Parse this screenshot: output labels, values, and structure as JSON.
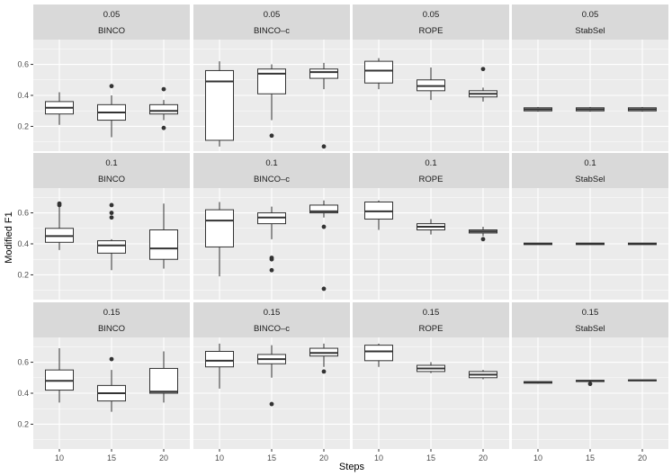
{
  "chart_data": {
    "type": "boxplot",
    "xlabel": "Steps",
    "ylabel": "Modified F1",
    "x_categories": [
      "10",
      "15",
      "20"
    ],
    "ylim": [
      0.04,
      0.76
    ],
    "yticks": [
      0.2,
      0.4,
      0.6
    ],
    "ytick_labels": [
      "0.2",
      "0.4",
      "0.6"
    ],
    "row_labels": [
      "0.05",
      "0.1",
      "0.15"
    ],
    "col_labels": [
      "BINCO",
      "BINCO–c",
      "ROPE",
      "StabSel"
    ],
    "rows": [
      [
        {
          "boxes": [
            {
              "min": 0.21,
              "q1": 0.28,
              "median": 0.32,
              "q3": 0.36,
              "max": 0.42,
              "outliers": []
            },
            {
              "min": 0.13,
              "q1": 0.24,
              "median": 0.29,
              "q3": 0.34,
              "max": 0.4,
              "outliers": [
                0.46
              ]
            },
            {
              "min": 0.24,
              "q1": 0.28,
              "median": 0.3,
              "q3": 0.34,
              "max": 0.37,
              "outliers": [
                0.44,
                0.19
              ]
            }
          ]
        },
        {
          "boxes": [
            {
              "min": 0.07,
              "q1": 0.11,
              "median": 0.49,
              "q3": 0.56,
              "max": 0.62,
              "outliers": []
            },
            {
              "min": 0.24,
              "q1": 0.41,
              "median": 0.54,
              "q3": 0.57,
              "max": 0.6,
              "outliers": [
                0.14
              ]
            },
            {
              "min": 0.44,
              "q1": 0.51,
              "median": 0.55,
              "q3": 0.57,
              "max": 0.61,
              "outliers": [
                0.07
              ]
            }
          ]
        },
        {
          "boxes": [
            {
              "min": 0.44,
              "q1": 0.48,
              "median": 0.56,
              "q3": 0.62,
              "max": 0.64,
              "outliers": []
            },
            {
              "min": 0.37,
              "q1": 0.43,
              "median": 0.46,
              "q3": 0.5,
              "max": 0.58,
              "outliers": []
            },
            {
              "min": 0.36,
              "q1": 0.39,
              "median": 0.41,
              "q3": 0.43,
              "max": 0.45,
              "outliers": [
                0.57
              ]
            }
          ]
        },
        {
          "boxes": [
            {
              "min": 0.295,
              "q1": 0.3,
              "median": 0.31,
              "q3": 0.32,
              "max": 0.325,
              "outliers": []
            },
            {
              "min": 0.295,
              "q1": 0.3,
              "median": 0.31,
              "q3": 0.32,
              "max": 0.325,
              "outliers": []
            },
            {
              "min": 0.295,
              "q1": 0.3,
              "median": 0.31,
              "q3": 0.32,
              "max": 0.325,
              "outliers": []
            }
          ]
        }
      ],
      [
        {
          "boxes": [
            {
              "min": 0.36,
              "q1": 0.41,
              "median": 0.45,
              "q3": 0.5,
              "max": 0.64,
              "outliers": [
                0.66,
                0.65
              ]
            },
            {
              "min": 0.23,
              "q1": 0.34,
              "median": 0.39,
              "q3": 0.42,
              "max": 0.43,
              "outliers": [
                0.65,
                0.6,
                0.57
              ]
            },
            {
              "min": 0.24,
              "q1": 0.3,
              "median": 0.37,
              "q3": 0.49,
              "max": 0.66,
              "outliers": []
            }
          ]
        },
        {
          "boxes": [
            {
              "min": 0.19,
              "q1": 0.38,
              "median": 0.55,
              "q3": 0.62,
              "max": 0.67,
              "outliers": []
            },
            {
              "min": 0.43,
              "q1": 0.53,
              "median": 0.57,
              "q3": 0.6,
              "max": 0.64,
              "outliers": [
                0.31,
                0.3,
                0.23
              ]
            },
            {
              "min": 0.57,
              "q1": 0.6,
              "median": 0.61,
              "q3": 0.65,
              "max": 0.68,
              "outliers": [
                0.51,
                0.11
              ]
            }
          ]
        },
        {
          "boxes": [
            {
              "min": 0.49,
              "q1": 0.56,
              "median": 0.61,
              "q3": 0.67,
              "max": 0.68,
              "outliers": []
            },
            {
              "min": 0.46,
              "q1": 0.49,
              "median": 0.51,
              "q3": 0.53,
              "max": 0.56,
              "outliers": []
            },
            {
              "min": 0.45,
              "q1": 0.47,
              "median": 0.48,
              "q3": 0.49,
              "max": 0.51,
              "outliers": [
                0.43
              ]
            }
          ]
        },
        {
          "boxes": [
            {
              "min": 0.395,
              "q1": 0.395,
              "median": 0.4,
              "q3": 0.405,
              "max": 0.405,
              "outliers": []
            },
            {
              "min": 0.395,
              "q1": 0.395,
              "median": 0.4,
              "q3": 0.405,
              "max": 0.405,
              "outliers": []
            },
            {
              "min": 0.395,
              "q1": 0.395,
              "median": 0.4,
              "q3": 0.405,
              "max": 0.405,
              "outliers": []
            }
          ]
        }
      ],
      [
        {
          "boxes": [
            {
              "min": 0.34,
              "q1": 0.42,
              "median": 0.48,
              "q3": 0.55,
              "max": 0.69,
              "outliers": []
            },
            {
              "min": 0.28,
              "q1": 0.35,
              "median": 0.4,
              "q3": 0.45,
              "max": 0.55,
              "outliers": [
                0.62
              ]
            },
            {
              "min": 0.34,
              "q1": 0.4,
              "median": 0.41,
              "q3": 0.56,
              "max": 0.67,
              "outliers": []
            }
          ]
        },
        {
          "boxes": [
            {
              "min": 0.43,
              "q1": 0.57,
              "median": 0.61,
              "q3": 0.67,
              "max": 0.72,
              "outliers": []
            },
            {
              "min": 0.5,
              "q1": 0.59,
              "median": 0.62,
              "q3": 0.65,
              "max": 0.71,
              "outliers": [
                0.33
              ]
            },
            {
              "min": 0.57,
              "q1": 0.64,
              "median": 0.66,
              "q3": 0.69,
              "max": 0.72,
              "outliers": [
                0.54
              ]
            }
          ]
        },
        {
          "boxes": [
            {
              "min": 0.57,
              "q1": 0.61,
              "median": 0.67,
              "q3": 0.71,
              "max": 0.72,
              "outliers": []
            },
            {
              "min": 0.53,
              "q1": 0.54,
              "median": 0.56,
              "q3": 0.58,
              "max": 0.6,
              "outliers": []
            },
            {
              "min": 0.49,
              "q1": 0.5,
              "median": 0.52,
              "q3": 0.54,
              "max": 0.55,
              "outliers": []
            }
          ]
        },
        {
          "boxes": [
            {
              "min": 0.462,
              "q1": 0.465,
              "median": 0.47,
              "q3": 0.475,
              "max": 0.478,
              "outliers": []
            },
            {
              "min": 0.472,
              "q1": 0.475,
              "median": 0.48,
              "q3": 0.483,
              "max": 0.486,
              "outliers": [
                0.46
              ]
            },
            {
              "min": 0.478,
              "q1": 0.48,
              "median": 0.483,
              "q3": 0.486,
              "max": 0.488,
              "outliers": []
            }
          ]
        }
      ]
    ]
  }
}
